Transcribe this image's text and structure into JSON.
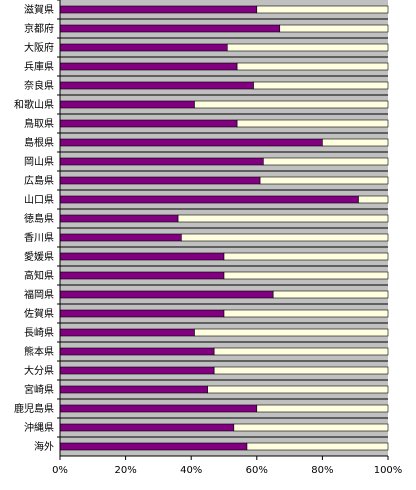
{
  "chart_data": {
    "type": "bar",
    "orientation": "horizontal",
    "stacked": true,
    "percent": true,
    "categories": [
      "滋賀県",
      "京都府",
      "大阪府",
      "兵庫県",
      "奈良県",
      "和歌山県",
      "鳥取県",
      "島根県",
      "岡山県",
      "広島県",
      "山口県",
      "徳島県",
      "香川県",
      "愛媛県",
      "高知県",
      "福岡県",
      "佐賀県",
      "長崎県",
      "熊本県",
      "大分県",
      "宮崎県",
      "鹿児島県",
      "沖縄県",
      "海外"
    ],
    "series": [
      {
        "values": [
          60,
          67,
          51,
          54,
          59,
          41,
          54,
          80,
          62,
          61,
          91,
          36,
          37,
          50,
          50,
          65,
          50,
          41,
          47,
          47,
          45,
          60,
          53,
          57
        ],
        "color": "#800080"
      },
      {
        "values": [
          40,
          33,
          49,
          46,
          41,
          59,
          46,
          20,
          38,
          39,
          9,
          64,
          63,
          50,
          50,
          35,
          50,
          59,
          53,
          53,
          55,
          40,
          47,
          43
        ],
        "color": "#ffffe0"
      }
    ],
    "xlim": [
      0,
      100
    ],
    "xticks": [
      "0%",
      "20%",
      "40%",
      "60%",
      "80%",
      "100%"
    ],
    "title": "",
    "xlabel": "",
    "ylabel": "",
    "grid": true,
    "background_color": "#c0c0c0",
    "grid_color": "#000000"
  }
}
